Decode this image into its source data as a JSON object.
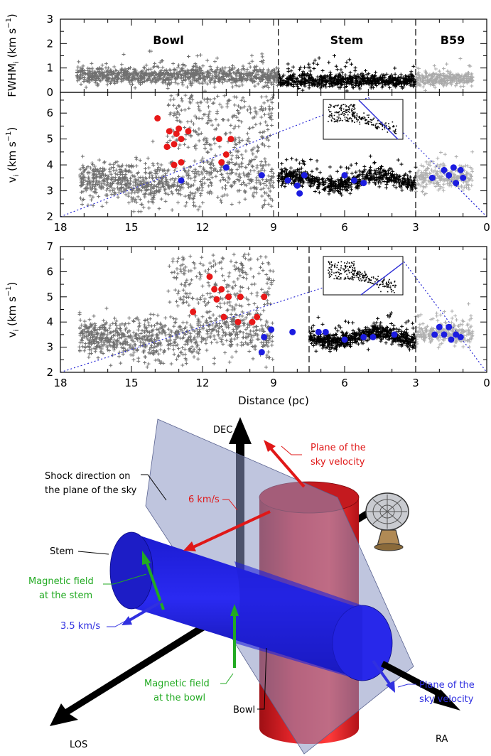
{
  "chart_data": [
    {
      "type": "scatter",
      "panel": "top",
      "ylabel_main": "FWHM",
      "ylabel_sub": "i",
      "ylabel_units": " (km s",
      "ylabel_exp": "−1",
      "ylabel_close": ")",
      "xlim": [
        18,
        0
      ],
      "ylim": [
        0,
        3
      ],
      "yticks": [
        "0",
        "1",
        "2",
        "3"
      ],
      "regions": [
        {
          "name": "Bowl",
          "x_center": 12.5
        },
        {
          "name": "Stem",
          "x_center": 5.8
        },
        {
          "name": "B59",
          "x_center": 1.6
        }
      ],
      "dividers_x": [
        8.8,
        3.0
      ],
      "series": [
        {
          "name": "Bowl",
          "color": "#707070",
          "x_range": [
            17.3,
            8.8
          ],
          "y_mean": 0.68,
          "y_spread": 0.22
        },
        {
          "name": "Stem",
          "color": "#000000",
          "x_range": [
            8.8,
            3.0
          ],
          "y_mean": 0.48,
          "y_spread": 0.18
        },
        {
          "name": "B59",
          "color": "#aaaaaa",
          "x_range": [
            3.0,
            0.6
          ],
          "y_mean": 0.55,
          "y_spread": 0.18
        }
      ]
    },
    {
      "type": "scatter",
      "panel": "middle",
      "ylabel_main": "v",
      "ylabel_sub": "i",
      "ylabel_units": " (km s",
      "ylabel_exp": "−1",
      "ylabel_close": ")",
      "xlim": [
        18,
        0
      ],
      "ylim": [
        2,
        6.8
      ],
      "yticks": [
        "2",
        "3",
        "4",
        "5",
        "6"
      ],
      "xticks": [
        "18",
        "15",
        "12",
        "9",
        "6",
        "3",
        "0"
      ],
      "dividers_x": [
        8.8,
        3.0
      ],
      "projection_line": {
        "from": [
          18,
          2.0
        ],
        "to": [
          5.0,
          6.6
        ],
        "color": "#2b2bd6"
      },
      "return_line": {
        "from": [
          5.0,
          6.6
        ],
        "to": [
          0,
          2.0
        ],
        "color": "#2b2bd6"
      },
      "red_points": [
        [
          13.9,
          5.8
        ],
        [
          13.4,
          5.3
        ],
        [
          13.1,
          5.2
        ],
        [
          12.9,
          5.0
        ],
        [
          13.2,
          4.8
        ],
        [
          13.5,
          4.7
        ],
        [
          12.9,
          4.1
        ],
        [
          13.2,
          4.0
        ],
        [
          11.3,
          5.0
        ],
        [
          10.8,
          5.0
        ],
        [
          11.0,
          4.4
        ],
        [
          11.2,
          4.1
        ],
        [
          12.6,
          5.3
        ],
        [
          13.0,
          5.4
        ]
      ],
      "blue_points": [
        [
          12.9,
          3.4
        ],
        [
          11.0,
          3.9
        ],
        [
          9.5,
          3.6
        ],
        [
          8.4,
          3.4
        ],
        [
          8.0,
          3.2
        ],
        [
          7.9,
          2.9
        ],
        [
          7.7,
          3.6
        ],
        [
          6.0,
          3.6
        ],
        [
          5.6,
          3.4
        ],
        [
          5.2,
          3.3
        ],
        [
          2.3,
          3.5
        ],
        [
          1.8,
          3.8
        ],
        [
          1.6,
          3.6
        ],
        [
          1.4,
          3.9
        ],
        [
          1.3,
          3.3
        ],
        [
          1.1,
          3.8
        ],
        [
          1.0,
          3.5
        ]
      ]
    },
    {
      "type": "scatter",
      "panel": "bottom",
      "ylabel_main": "v",
      "ylabel_sub": "i",
      "ylabel_units": " (km s",
      "ylabel_exp": "−1",
      "ylabel_close": ")",
      "xlabel": "Distance (pc)",
      "xlim": [
        18,
        0
      ],
      "ylim": [
        2,
        7
      ],
      "yticks": [
        "2",
        "3",
        "4",
        "5",
        "6",
        "7"
      ],
      "xticks": [
        "18",
        "15",
        "12",
        "9",
        "6",
        "3",
        "0"
      ],
      "dividers_x": [
        7.5,
        3.0
      ],
      "projection_line": {
        "from": [
          18,
          2.0
        ],
        "to": [
          3.5,
          6.4
        ],
        "color": "#2b2bd6"
      },
      "return_line": {
        "from": [
          3.5,
          6.4
        ],
        "to": [
          0,
          2.0
        ],
        "color": "#2b2bd6"
      },
      "red_points": [
        [
          11.7,
          5.8
        ],
        [
          11.5,
          5.3
        ],
        [
          11.2,
          5.3
        ],
        [
          11.4,
          4.9
        ],
        [
          10.9,
          5.0
        ],
        [
          10.4,
          5.0
        ],
        [
          11.1,
          4.2
        ],
        [
          12.4,
          4.4
        ],
        [
          10.5,
          4.0
        ],
        [
          9.4,
          5.0
        ],
        [
          9.7,
          4.2
        ],
        [
          9.9,
          4.0
        ]
      ],
      "blue_points": [
        [
          9.5,
          2.8
        ],
        [
          9.4,
          3.4
        ],
        [
          9.1,
          3.7
        ],
        [
          8.2,
          3.6
        ],
        [
          7.1,
          3.6
        ],
        [
          6.8,
          3.6
        ],
        [
          6.0,
          3.3
        ],
        [
          5.2,
          3.4
        ],
        [
          4.8,
          3.4
        ],
        [
          3.9,
          3.5
        ],
        [
          2.0,
          3.8
        ],
        [
          1.8,
          3.5
        ],
        [
          1.6,
          3.8
        ],
        [
          1.5,
          3.3
        ],
        [
          1.3,
          3.5
        ],
        [
          1.1,
          3.4
        ],
        [
          2.2,
          3.5
        ]
      ]
    }
  ],
  "diagram": {
    "labels": {
      "dec": "DEC",
      "ra": "RA",
      "los": "LOS",
      "plane_sky_velocity_red_1": "Plane of the",
      "plane_sky_velocity_red_2": "sky velocity",
      "shock_1": "Shock direction on",
      "shock_2": "the plane of the sky",
      "red_speed": "6 km/s",
      "stem": "Stem",
      "mag_stem_1": "Magnetic field",
      "mag_stem_2": "at the stem",
      "blue_speed": "3.5 km/s",
      "mag_bowl_1": "Magnetic field",
      "mag_bowl_2": "at the bowl",
      "bowl": "Bowl",
      "plane_sky_velocity_blue_1": "Plane of the",
      "plane_sky_velocity_blue_2": "sky velocity"
    },
    "colors": {
      "red": "#e01818",
      "blue": "#2323d8",
      "green": "#22aa22",
      "plane": "#8a95c2"
    },
    "icons": [
      "radio-telescope-icon"
    ]
  }
}
